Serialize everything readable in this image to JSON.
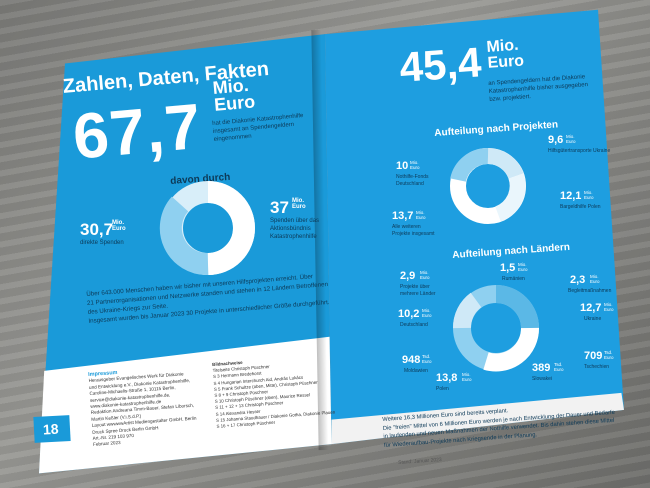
{
  "left": {
    "heading": "Zahlen, Daten, Fakten",
    "total_value": "67,7",
    "total_unit": "Mio.\nEuro",
    "total_caption": "hat die Diakonie Katastrophenhilfe insgesamt an Spendengeldern eingenommen",
    "davon": "davon durch",
    "direct_value": "30,7",
    "direct_unit": "Mio. Euro",
    "direct_label": "direkte Spenden",
    "alliance_value": "37",
    "alliance_unit": "Mio. Euro",
    "alliance_label": "Spenden über das Aktionsbündnis Katastrophenhilfe",
    "paragraph_1": "Über 643.000 Menschen haben wir bisher mit unseren Hilfsprojekten erreicht. Über",
    "paragraph_2": "21 Partnerorganisationen und Netzwerke standen und stehen in 12 Ländern Betroffenen",
    "paragraph_3": "des Ukraine-Kriegs zur Seite.",
    "paragraph_4": "Insgesamt wurden bis Januar 2023 30 Projekte in unterschiedlicher Größe durchgeführt.",
    "page_number": "18",
    "impressum_title": "Impressum",
    "impressum_lines": [
      "Herausgeber Evangelisches Werk für Diakonie",
      "und Entwicklung e.V., Diakonie Katastrophenhilfe,",
      "Caroline-Michaelis-Straße 1, 10115 Berlin,",
      "service@diakonie-katastrophenhilfe.de,",
      "www.diakonie-katastrophenhilfe.de",
      "Redaktion Andreana Timm-Bauer, Stefan Liborsch,",
      "Martin Keßler (V.i.S.d.P.)",
      "Layout wwwwwArtist Mediengestalter GmbH, Berlin",
      "Druck Spree Druck Berlin GmbH",
      "Art.-Nr. 219 103 970",
      "Februar 2023"
    ],
    "credits_title": "Bildnachweise",
    "credits_lines": [
      "Titelseite Christoph Püschner",
      "S 3 Hermann Bredehorst",
      "S 4 Hungarian Interchurch Aid, András Lukács",
      "S 5 Frank Schultze (oben, Mitte), Christoph Püschner",
      "S 8 + 9 Christoph Püschner",
      "S 10 Christoph Püschner (oben), Maurice Ressel",
      "S 11 + 12 + 13 Christoph Püschner",
      "S 14 Alexandra Hesser",
      "S 15 Johanna Staudhauer / Diakonie Gotha, Diakonie Plauen",
      "S 16 + 17 Christoph Püschner"
    ]
  },
  "right": {
    "total_value": "45,4",
    "total_unit": "Mio.\nEuro",
    "total_caption_1": "an Spendengeldern hat die Diakonie",
    "total_caption_2": "Katastrophenhilfe bisher ausgegeben",
    "total_caption_3": "bzw. projektiert.",
    "projects_title": "Aufteilung nach Projekten",
    "projects": [
      {
        "value": "10",
        "unit": "Mio. Euro",
        "label": "Nothilfe-Fonds Deutschland"
      },
      {
        "value": "9,6",
        "unit": "Mio. Euro",
        "label": "Hilfsgütertransporte Ukraine"
      },
      {
        "value": "12,1",
        "unit": "Mio. Euro",
        "label": "Bargeldhilfe Polen"
      },
      {
        "value": "13,7",
        "unit": "Mio. Euro",
        "label": "Alle weiteren Projekte insgesamt"
      }
    ],
    "countries_title": "Aufteilung nach Ländern",
    "countries": [
      {
        "value": "2,9",
        "unit": "Mio. Euro",
        "label": "Projekte über mehrere Länder"
      },
      {
        "value": "1,5",
        "unit": "Mio. Euro",
        "label": "Rumänien"
      },
      {
        "value": "2,3",
        "unit": "Mio. Euro",
        "label": "Begleitmaßnahmen"
      },
      {
        "value": "12,7",
        "unit": "Mio. Euro",
        "label": "Ukraine"
      },
      {
        "value": "10,2",
        "unit": "Mio. Euro",
        "label": "Deutschland"
      },
      {
        "value": "948",
        "unit": "Tsd. Euro",
        "label": "Moldawien"
      },
      {
        "value": "709",
        "unit": "Tsd. Euro",
        "label": "Tschechien"
      },
      {
        "value": "389",
        "unit": "Tsd. Euro",
        "label": "Slowakei"
      },
      {
        "value": "13,8",
        "unit": "Mio. Euro",
        "label": "Polen"
      }
    ],
    "footer_1": "Weitere 16,3 Millionen Euro sind bereits verplant.",
    "footer_2": "Die \"freien\" Mittel von 6 Millionen Euro werden je nach Entwicklung der Dauer und Bedarfe",
    "footer_3": "in laufenden und neuen Maßnahmen der Nothilfe verwendet. Bis dahin stehen diese Mittel",
    "footer_4": "für Wiederaufbau-Projekte nach Kriegsende in der Planung.",
    "stand": "Stand: Januar 2023"
  }
}
